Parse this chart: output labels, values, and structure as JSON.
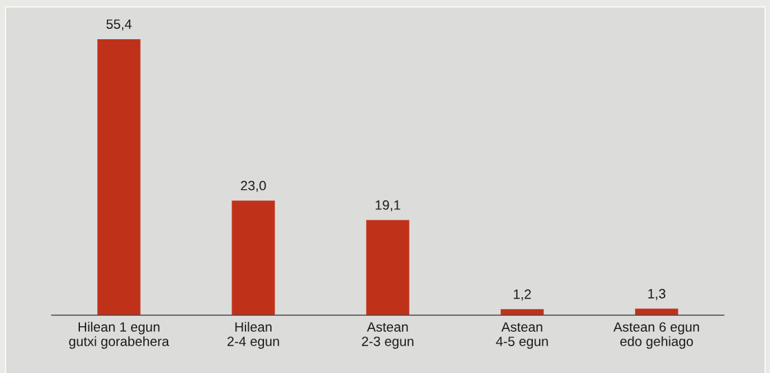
{
  "chart_data": {
    "type": "bar",
    "categories": [
      "Hilean 1 egun\ngutxi gorabehera",
      "Hilean\n2-4 egun",
      "Astean\n2-3 egun",
      "Astean\n4-5 egun",
      "Astean 6 egun\nedo gehiago"
    ],
    "values": [
      55.4,
      23.0,
      19.1,
      1.2,
      1.3
    ],
    "value_labels": [
      "55,4",
      "23,0",
      "19,1",
      "1,2",
      "1,3"
    ],
    "color": "#c0311a"
  }
}
